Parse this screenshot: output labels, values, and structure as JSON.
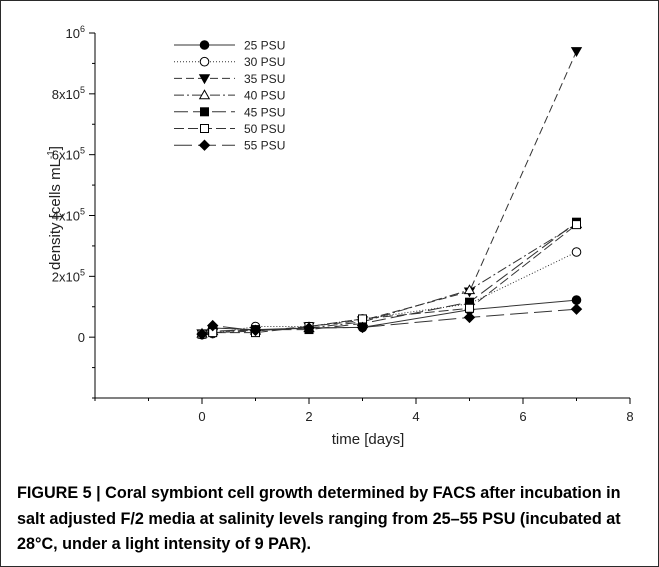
{
  "chart_data": {
    "type": "line",
    "xlabel": "time [days]",
    "ylabel": "density [cells mL",
    "ylabel_sup": "-1",
    "ylabel_end": "]",
    "xlim": [
      -2,
      8
    ],
    "ylim": [
      -200000,
      1000000
    ],
    "grid": false,
    "legend_position": "top-left",
    "x_ticks": [
      {
        "value": 0,
        "label": "0"
      },
      {
        "value": 2,
        "label": "2"
      },
      {
        "value": 4,
        "label": "4"
      },
      {
        "value": 6,
        "label": "6"
      },
      {
        "value": 8,
        "label": "8"
      }
    ],
    "y_ticks": [
      {
        "value": 0,
        "base": "0",
        "exp": ""
      },
      {
        "value": 200000,
        "base": "2x10",
        "exp": "5"
      },
      {
        "value": 400000,
        "base": "4x10",
        "exp": "5"
      },
      {
        "value": 600000,
        "base": "6x10",
        "exp": "5"
      },
      {
        "value": 800000,
        "base": "8x10",
        "exp": "5"
      },
      {
        "value": 1000000,
        "base": "10",
        "exp": "6"
      }
    ],
    "series": [
      {
        "name": "25 PSU",
        "marker": "circle-filled",
        "dash": "",
        "x": [
          0,
          0.2,
          1,
          2,
          3,
          5,
          7
        ],
        "y": [
          10000,
          30000,
          25000,
          30000,
          32000,
          90000,
          122000
        ]
      },
      {
        "name": "30 PSU",
        "marker": "circle-open",
        "dash": "1 2",
        "x": [
          0,
          0.2,
          1,
          2,
          3,
          5,
          7
        ],
        "y": [
          8000,
          12000,
          35000,
          35000,
          60000,
          110000,
          280000
        ]
      },
      {
        "name": "35 PSU",
        "marker": "triangle-down-filled",
        "dash": "8 4",
        "x": [
          0,
          0.2,
          1,
          2,
          3,
          5,
          7
        ],
        "y": [
          12000,
          15000,
          20000,
          35000,
          55000,
          150000,
          940000
        ]
      },
      {
        "name": "40 PSU",
        "marker": "triangle-up-open",
        "dash": "10 3 2 3",
        "x": [
          0,
          0.2,
          1,
          2,
          3,
          5,
          7
        ],
        "y": [
          12000,
          20000,
          22000,
          30000,
          50000,
          155000,
          372000
        ]
      },
      {
        "name": "45 PSU",
        "marker": "square-filled",
        "dash": "14 5",
        "x": [
          0,
          0.2,
          1,
          2,
          3,
          5,
          7
        ],
        "y": [
          10000,
          20000,
          25000,
          25000,
          45000,
          115000,
          378000
        ]
      },
      {
        "name": "50 PSU",
        "marker": "square-open",
        "dash": "10 4",
        "x": [
          0,
          0.2,
          1,
          2,
          3,
          5,
          7
        ],
        "y": [
          10000,
          15000,
          15000,
          35000,
          60000,
          95000,
          370000
        ]
      },
      {
        "name": "55 PSU",
        "marker": "diamond-filled",
        "dash": "18 6",
        "x": [
          0,
          0.2,
          1,
          2,
          3,
          5,
          7
        ],
        "y": [
          10000,
          38000,
          22000,
          30000,
          32000,
          65000,
          92000
        ]
      }
    ]
  },
  "caption": "FIGURE 5 | Coral symbiont cell growth determined by FACS after incubation in salt adjusted F/2 media at salinity levels ranging from 25–55 PSU (incubated at 28°C, under a light intensity of 9 PAR)."
}
